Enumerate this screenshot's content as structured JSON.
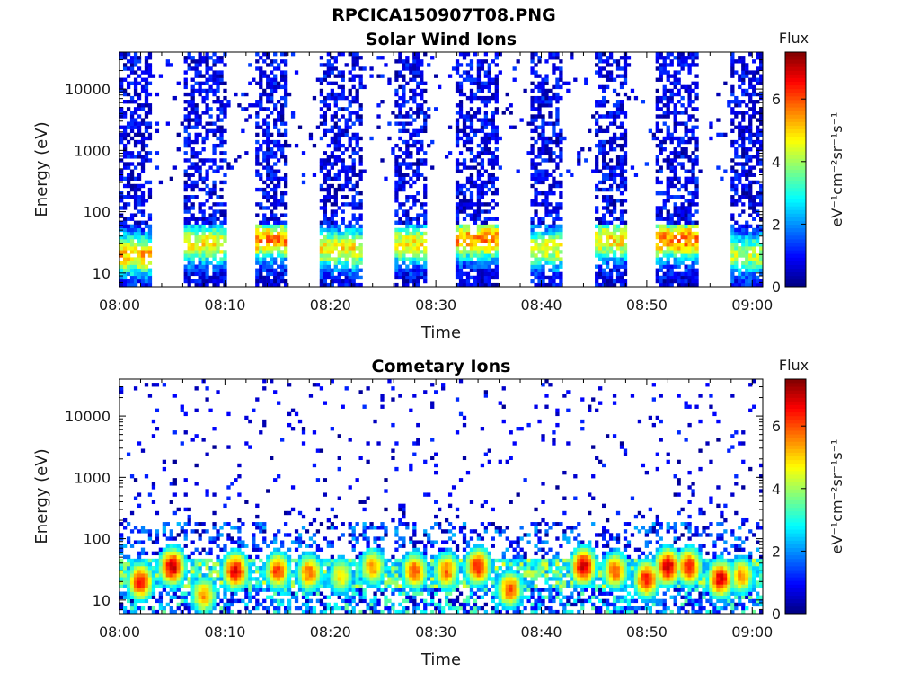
{
  "figure": {
    "title": "RPCICA150907T08.PNG"
  },
  "chart_data": [
    {
      "type": "heatmap",
      "title": "Solar Wind Ions",
      "xlabel": "Time",
      "ylabel": "Energy (eV)",
      "y_scale": "log",
      "x_ticks": [
        "08:00",
        "08:10",
        "08:20",
        "08:30",
        "08:40",
        "08:50",
        "09:00"
      ],
      "y_ticks": [
        "10",
        "100",
        "1000",
        "10000"
      ],
      "xlim": [
        "08:00",
        "09:01"
      ],
      "ylim": [
        6,
        40000
      ],
      "colorbar": {
        "title": "Flux",
        "label": "eV⁻¹cm⁻²sr⁻¹s⁻¹",
        "range": [
          0,
          7.5
        ],
        "ticks": [
          "0",
          "2",
          "4",
          "6"
        ],
        "colormap": "jet"
      },
      "scan_bursts": [
        {
          "start": "08:00",
          "end": "08:03",
          "peak_energy_eV": 20,
          "peak_flux": 4.5
        },
        {
          "start": "08:06",
          "end": "08:10",
          "peak_energy_eV": 30,
          "peak_flux": 4.0
        },
        {
          "start": "08:13",
          "end": "08:16",
          "peak_energy_eV": 35,
          "peak_flux": 4.8
        },
        {
          "start": "08:19",
          "end": "08:23",
          "peak_energy_eV": 25,
          "peak_flux": 4.0
        },
        {
          "start": "08:26",
          "end": "08:29",
          "peak_energy_eV": 30,
          "peak_flux": 4.0
        },
        {
          "start": "08:32",
          "end": "08:36",
          "peak_energy_eV": 35,
          "peak_flux": 4.8
        },
        {
          "start": "08:39",
          "end": "08:42",
          "peak_energy_eV": 25,
          "peak_flux": 3.8
        },
        {
          "start": "08:45",
          "end": "08:48",
          "peak_energy_eV": 35,
          "peak_flux": 4.2
        },
        {
          "start": "08:51",
          "end": "08:55",
          "peak_energy_eV": 35,
          "peak_flux": 5.0
        },
        {
          "start": "08:58",
          "end": "09:01",
          "peak_energy_eV": 20,
          "peak_flux": 3.5
        }
      ]
    },
    {
      "type": "heatmap",
      "title": "Cometary Ions",
      "xlabel": "Time",
      "ylabel": "Energy (eV)",
      "y_scale": "log",
      "x_ticks": [
        "08:00",
        "08:10",
        "08:20",
        "08:30",
        "08:40",
        "08:50",
        "09:00"
      ],
      "y_ticks": [
        "10",
        "100",
        "1000",
        "10000"
      ],
      "xlim": [
        "08:00",
        "09:01"
      ],
      "ylim": [
        6,
        40000
      ],
      "colorbar": {
        "title": "Flux",
        "label": "eV⁻¹cm⁻²sr⁻¹s⁻¹",
        "range": [
          0,
          7.5
        ],
        "ticks": [
          "0",
          "2",
          "4",
          "6"
        ],
        "colormap": "jet"
      },
      "ion_band": {
        "energy_min_eV": 15,
        "energy_max_eV": 50
      },
      "hotspots": [
        {
          "time": "08:02",
          "energy_eV": 20,
          "flux": 6.5
        },
        {
          "time": "08:05",
          "energy_eV": 35,
          "flux": 7.0
        },
        {
          "time": "08:08",
          "energy_eV": 12,
          "flux": 5.5
        },
        {
          "time": "08:11",
          "energy_eV": 30,
          "flux": 6.8
        },
        {
          "time": "08:15",
          "energy_eV": 30,
          "flux": 6.2
        },
        {
          "time": "08:18",
          "energy_eV": 28,
          "flux": 5.8
        },
        {
          "time": "08:21",
          "energy_eV": 25,
          "flux": 5.0
        },
        {
          "time": "08:24",
          "energy_eV": 35,
          "flux": 5.5
        },
        {
          "time": "08:28",
          "energy_eV": 30,
          "flux": 6.0
        },
        {
          "time": "08:31",
          "energy_eV": 30,
          "flux": 5.8
        },
        {
          "time": "08:34",
          "energy_eV": 35,
          "flux": 6.5
        },
        {
          "time": "08:37",
          "energy_eV": 15,
          "flux": 6.0
        },
        {
          "time": "08:44",
          "energy_eV": 35,
          "flux": 7.0
        },
        {
          "time": "08:47",
          "energy_eV": 30,
          "flux": 6.0
        },
        {
          "time": "08:50",
          "energy_eV": 22,
          "flux": 6.5
        },
        {
          "time": "08:52",
          "energy_eV": 35,
          "flux": 7.0
        },
        {
          "time": "08:54",
          "energy_eV": 35,
          "flux": 6.5
        },
        {
          "time": "08:57",
          "energy_eV": 22,
          "flux": 6.8
        },
        {
          "time": "08:59",
          "energy_eV": 25,
          "flux": 5.5
        }
      ]
    }
  ]
}
